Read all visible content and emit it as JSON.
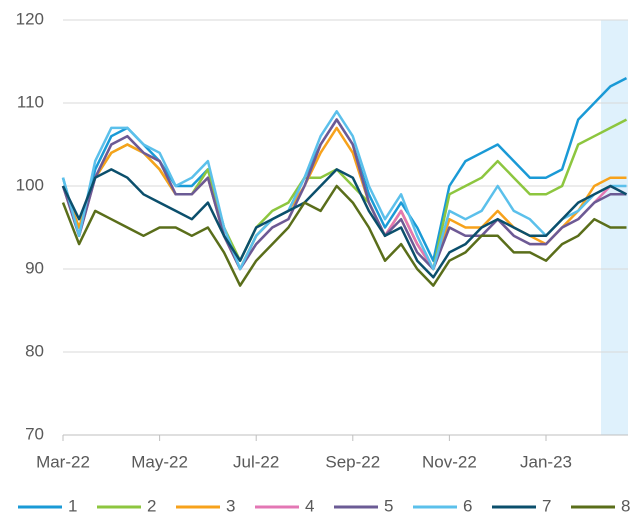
{
  "chart_data": {
    "type": "line",
    "categories": [
      "Mar-22",
      null,
      null,
      null,
      null,
      null,
      "May-22",
      null,
      null,
      null,
      null,
      null,
      "Jul-22",
      null,
      null,
      null,
      null,
      null,
      "Sep-22",
      null,
      null,
      null,
      null,
      null,
      "Nov-22",
      null,
      null,
      null,
      null,
      null,
      "Jan-23",
      null,
      null,
      null,
      null,
      null
    ],
    "ylim": [
      70,
      120
    ],
    "yticks": [
      70,
      80,
      90,
      100,
      110,
      120
    ],
    "grid": true,
    "legend": "bottom",
    "series": [
      {
        "name": "1",
        "color": "#1a9ad6",
        "values": [
          101,
          94,
          102,
          106,
          107,
          105,
          103,
          100,
          100,
          102,
          95,
          90,
          94,
          96,
          97,
          101,
          105,
          108,
          105,
          99,
          95,
          98,
          95,
          91,
          100,
          103,
          104,
          105,
          103,
          101,
          101,
          102,
          108,
          110,
          112,
          113
        ]
      },
      {
        "name": "2",
        "color": "#8dc63f",
        "values": [
          100,
          95,
          101,
          104,
          105,
          104,
          102,
          99,
          99,
          102,
          95,
          91,
          95,
          97,
          98,
          101,
          101,
          102,
          100,
          98,
          94,
          97,
          93,
          90,
          99,
          100,
          101,
          103,
          101,
          99,
          99,
          100,
          105,
          106,
          107,
          108
        ]
      },
      {
        "name": "3",
        "color": "#f7a21b",
        "values": [
          100,
          95,
          101,
          104,
          105,
          104,
          102,
          99,
          99,
          101,
          94,
          90,
          94,
          96,
          97,
          100,
          104,
          107,
          104,
          98,
          94,
          97,
          93,
          90,
          96,
          95,
          95,
          97,
          95,
          94,
          93,
          95,
          97,
          100,
          101,
          101
        ]
      },
      {
        "name": "4",
        "color": "#e377b4",
        "values": [
          100,
          94,
          101,
          105,
          106,
          104,
          103,
          99,
          99,
          101,
          94,
          90,
          93,
          95,
          96,
          100,
          105,
          108,
          105,
          98,
          94,
          97,
          93,
          90,
          95,
          94,
          94,
          96,
          94,
          93,
          93,
          95,
          96,
          98,
          100,
          99
        ]
      },
      {
        "name": "5",
        "color": "#6b5b95",
        "values": [
          100,
          94,
          101,
          105,
          106,
          104,
          103,
          99,
          99,
          101,
          94,
          90,
          93,
          95,
          96,
          100,
          105,
          108,
          105,
          98,
          94,
          96,
          92,
          90,
          95,
          94,
          94,
          96,
          94,
          93,
          93,
          95,
          96,
          98,
          99,
          99
        ]
      },
      {
        "name": "6",
        "color": "#5bc0eb",
        "values": [
          101,
          94,
          103,
          107,
          107,
          105,
          104,
          100,
          101,
          103,
          95,
          90,
          94,
          96,
          97,
          101,
          106,
          109,
          106,
          100,
          96,
          99,
          94,
          90,
          97,
          96,
          97,
          100,
          97,
          96,
          94,
          96,
          97,
          99,
          100,
          100
        ]
      },
      {
        "name": "7",
        "color": "#0b4f6c",
        "values": [
          100,
          96,
          101,
          102,
          101,
          99,
          98,
          97,
          96,
          98,
          94,
          91,
          95,
          96,
          97,
          98,
          100,
          102,
          101,
          97,
          94,
          95,
          91,
          89,
          92,
          93,
          95,
          96,
          95,
          94,
          94,
          96,
          98,
          99,
          100,
          99
        ]
      },
      {
        "name": "8",
        "color": "#5a6e1a",
        "values": [
          98,
          93,
          97,
          96,
          95,
          94,
          95,
          95,
          94,
          95,
          92,
          88,
          91,
          93,
          95,
          98,
          97,
          100,
          98,
          95,
          91,
          93,
          90,
          88,
          91,
          92,
          94,
          94,
          92,
          92,
          91,
          93,
          94,
          96,
          95,
          95
        ]
      }
    ]
  }
}
